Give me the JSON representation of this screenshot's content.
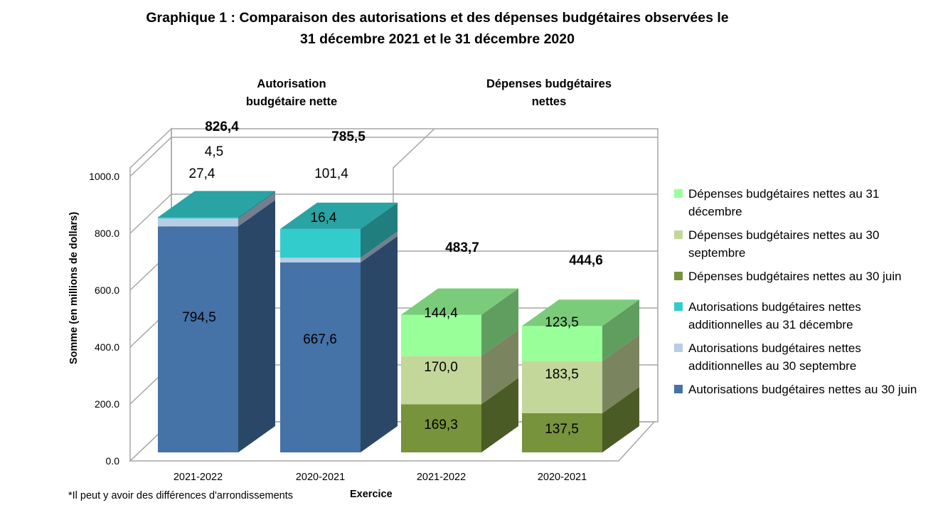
{
  "title_line1": "Graphique 1 : Comparaison des autorisations et des dépenses budgétaires observées le",
  "title_line2": "31 décembre 2021 et le 31 décembre 2020",
  "footnote": "*Il peut y avoir des différences d'arrondissements",
  "chart_data": {
    "type": "bar",
    "stacked": true,
    "three_d": true,
    "ylabel": "Somme (en millions de dollars)",
    "xlabel": "Exercice",
    "ylim": [
      0,
      1000
    ],
    "yticks": [
      "0.0",
      "200.0",
      "400.0",
      "600.0",
      "800.0",
      "1000.0"
    ],
    "groups": [
      {
        "label": "Autorisation budgétaire nette",
        "label_lines": [
          "Autorisation",
          "budgétaire nette"
        ]
      },
      {
        "label": "Dépenses budgétaires nettes",
        "label_lines": [
          "Dépenses budgétaires",
          "nettes"
        ]
      }
    ],
    "categories": [
      "2021-2022",
      "2020-2021",
      "2021-2022",
      "2020-2021"
    ],
    "totals": [
      {
        "value": 826.4,
        "label": "826,4"
      },
      {
        "value": 785.5,
        "label": "785,5"
      },
      {
        "value": 483.7,
        "label": "483,7"
      },
      {
        "value": 444.6,
        "label": "444,6"
      }
    ],
    "bars": [
      {
        "segments": [
          {
            "series": "Autorisations budgétaires nettes au 30 juin",
            "value": 794.5,
            "label": "794,5"
          },
          {
            "series": "Autorisations budgétaires nettes additionnelles au 30 septembre",
            "value": 27.4,
            "label": "27,4"
          },
          {
            "series": "Autorisations budgétaires nettes additionnelles au 31 décembre",
            "value": 4.5,
            "label": "4,5"
          }
        ]
      },
      {
        "segments": [
          {
            "series": "Autorisations budgétaires nettes au 30 juin",
            "value": 667.6,
            "label": "667,6"
          },
          {
            "series": "Autorisations budgétaires nettes additionnelles au 30 septembre",
            "value": 16.4,
            "label": "16,4"
          },
          {
            "series": "Autorisations budgétaires nettes additionnelles au 31 décembre",
            "value": 101.4,
            "label": "101,4"
          }
        ]
      },
      {
        "segments": [
          {
            "series": "Dépenses budgétaires nettes au 30 juin",
            "value": 169.3,
            "label": "169,3"
          },
          {
            "series": "Dépenses budgétaires nettes au 30 septembre",
            "value": 170.0,
            "label": "170,0"
          },
          {
            "series": "Dépenses budgétaires nettes au 31 décembre",
            "value": 144.4,
            "label": "144,4"
          }
        ]
      },
      {
        "segments": [
          {
            "series": "Dépenses budgétaires nettes au 30 juin",
            "value": 137.5,
            "label": "137,5"
          },
          {
            "series": "Dépenses budgétaires nettes au 30 septembre",
            "value": 183.5,
            "label": "183,5"
          },
          {
            "series": "Dépenses budgétaires nettes au 31 décembre",
            "value": 123.5,
            "label": "123,5"
          }
        ]
      }
    ],
    "series": [
      {
        "name": "Dépenses budgétaires nettes au 31 décembre",
        "color": "#99ff99"
      },
      {
        "name": "Dépenses budgétaires nettes au 30 septembre",
        "color": "#c4d79b"
      },
      {
        "name": "Dépenses budgétaires nettes au 30 juin",
        "color": "#77933c"
      },
      {
        "name": "Autorisations budgétaires nettes additionnelles au 31 décembre",
        "color": "#33cccc"
      },
      {
        "name": "Autorisations budgétaires nettes additionnelles au 30 septembre",
        "color": "#b9cde5"
      },
      {
        "name": "Autorisations budgétaires nettes au 30 juin",
        "color": "#4572a7"
      }
    ],
    "grid": true,
    "legend_position": "right"
  }
}
